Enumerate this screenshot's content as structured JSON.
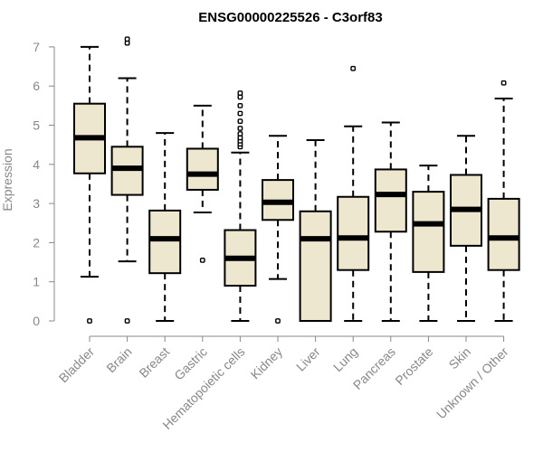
{
  "chart_data": {
    "type": "boxplot",
    "title": "ENSG00000225526 - C3orf83",
    "ylabel": "Expression",
    "xlabel": "",
    "ylim": [
      0,
      7.3
    ],
    "yticks": [
      0,
      1,
      2,
      3,
      4,
      5,
      6,
      7
    ],
    "colors": {
      "box_fill": "#ede7cf",
      "axis": "#888888",
      "text": "#888888"
    },
    "categories": [
      "Bladder",
      "Brain",
      "Breast",
      "Gastric",
      "Hematopoietic cells",
      "Kidney",
      "Liver",
      "Lung",
      "Pancreas",
      "Prostate",
      "Skin",
      "Unknown / Other"
    ],
    "boxes": [
      {
        "name": "Bladder",
        "whisker_low": 1.13,
        "q1": 3.77,
        "median": 4.68,
        "q3": 5.55,
        "whisker_high": 7.0,
        "outliers": [
          0.0
        ]
      },
      {
        "name": "Brain",
        "whisker_low": 1.52,
        "q1": 3.22,
        "median": 3.9,
        "q3": 4.45,
        "whisker_high": 6.2,
        "outliers": [
          0.0,
          7.1,
          7.2
        ]
      },
      {
        "name": "Breast",
        "whisker_low": 0.0,
        "q1": 1.22,
        "median": 2.1,
        "q3": 2.82,
        "whisker_high": 4.8,
        "outliers": []
      },
      {
        "name": "Gastric",
        "whisker_low": 2.77,
        "q1": 3.35,
        "median": 3.75,
        "q3": 4.4,
        "whisker_high": 5.5,
        "outliers": [
          1.55
        ]
      },
      {
        "name": "Hematopoietic cells",
        "whisker_low": 0.0,
        "q1": 0.9,
        "median": 1.6,
        "q3": 2.32,
        "whisker_high": 4.3,
        "outliers": [
          4.45,
          4.52,
          4.6,
          4.68,
          4.78,
          4.92,
          5.1,
          5.3,
          5.5,
          5.72,
          5.82
        ]
      },
      {
        "name": "Kidney",
        "whisker_low": 1.07,
        "q1": 2.58,
        "median": 3.03,
        "q3": 3.6,
        "whisker_high": 4.73,
        "outliers": [
          0.0
        ]
      },
      {
        "name": "Liver",
        "whisker_low": 0.0,
        "q1": 0.0,
        "median": 2.1,
        "q3": 2.8,
        "whisker_high": 4.62,
        "outliers": []
      },
      {
        "name": "Lung",
        "whisker_low": 0.0,
        "q1": 1.3,
        "median": 2.12,
        "q3": 3.17,
        "whisker_high": 4.97,
        "outliers": [
          6.45
        ]
      },
      {
        "name": "Pancreas",
        "whisker_low": 0.0,
        "q1": 2.28,
        "median": 3.23,
        "q3": 3.87,
        "whisker_high": 5.07,
        "outliers": []
      },
      {
        "name": "Prostate",
        "whisker_low": 0.0,
        "q1": 1.25,
        "median": 2.48,
        "q3": 3.3,
        "whisker_high": 3.97,
        "outliers": []
      },
      {
        "name": "Skin",
        "whisker_low": 0.0,
        "q1": 1.92,
        "median": 2.85,
        "q3": 3.73,
        "whisker_high": 4.73,
        "outliers": []
      },
      {
        "name": "Unknown / Other",
        "whisker_low": 0.0,
        "q1": 1.3,
        "median": 2.12,
        "q3": 3.12,
        "whisker_high": 5.68,
        "outliers": [
          6.08
        ]
      }
    ]
  }
}
